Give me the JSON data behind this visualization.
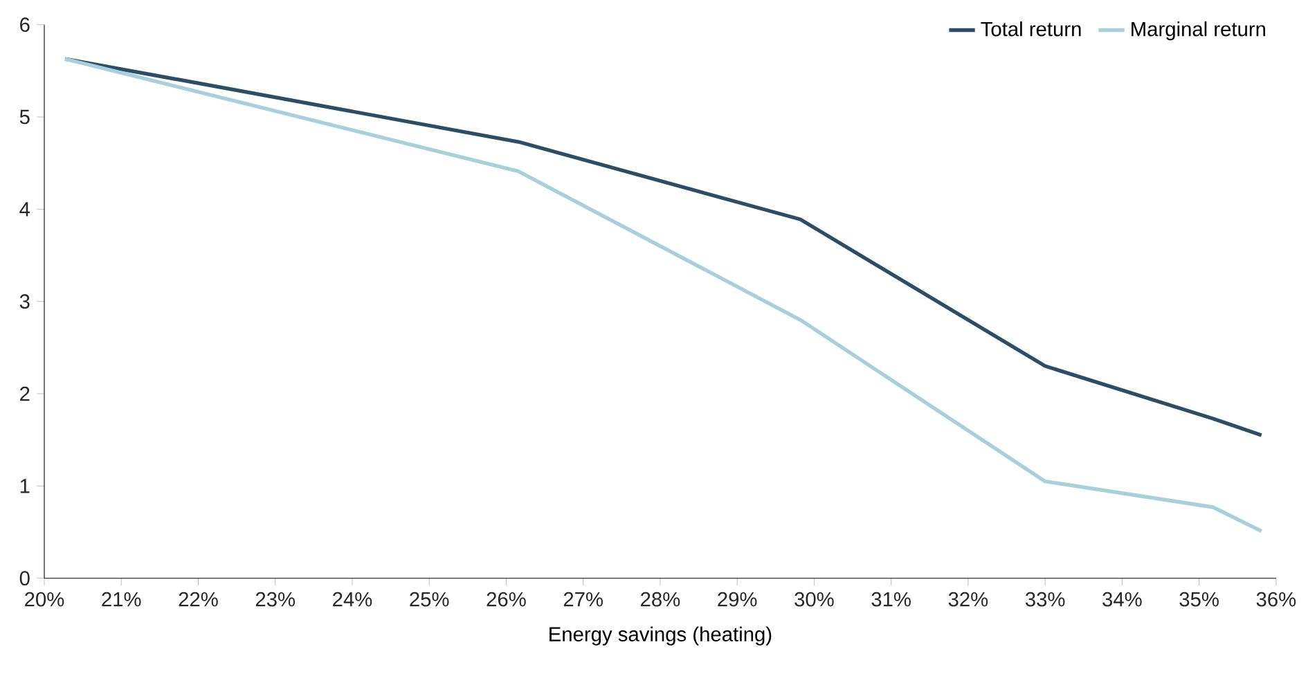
{
  "chart_data": {
    "type": "line",
    "xlabel": "Energy savings (heating)",
    "x": [
      20.27,
      26.16,
      29.82,
      33.0,
      35.18,
      35.81
    ],
    "series": [
      {
        "name": "Total return",
        "color": "#2b4d66",
        "values": [
          5.63,
          4.73,
          3.89,
          2.3,
          1.73,
          1.55
        ]
      },
      {
        "name": "Marginal return",
        "color": "#a8cfdc",
        "values": [
          5.63,
          4.41,
          2.8,
          1.05,
          0.77,
          0.51
        ]
      }
    ],
    "xlim": [
      20,
      36
    ],
    "ylim": [
      0,
      6
    ],
    "xticks": [
      {
        "value": 20,
        "label": "20%"
      },
      {
        "value": 21,
        "label": "21%"
      },
      {
        "value": 22,
        "label": "22%"
      },
      {
        "value": 23,
        "label": "23%"
      },
      {
        "value": 24,
        "label": "24%"
      },
      {
        "value": 25,
        "label": "25%"
      },
      {
        "value": 26,
        "label": "26%"
      },
      {
        "value": 27,
        "label": "27%"
      },
      {
        "value": 28,
        "label": "28%"
      },
      {
        "value": 29,
        "label": "29%"
      },
      {
        "value": 30,
        "label": "30%"
      },
      {
        "value": 31,
        "label": "31%"
      },
      {
        "value": 32,
        "label": "32%"
      },
      {
        "value": 33,
        "label": "33%"
      },
      {
        "value": 34,
        "label": "34%"
      },
      {
        "value": 35,
        "label": "35%"
      },
      {
        "value": 36,
        "label": "36%"
      }
    ],
    "yticks": [
      0,
      1,
      2,
      3,
      4,
      5,
      6
    ],
    "grid": false,
    "legend": "top right",
    "marker": "none",
    "line_style": "solid"
  }
}
